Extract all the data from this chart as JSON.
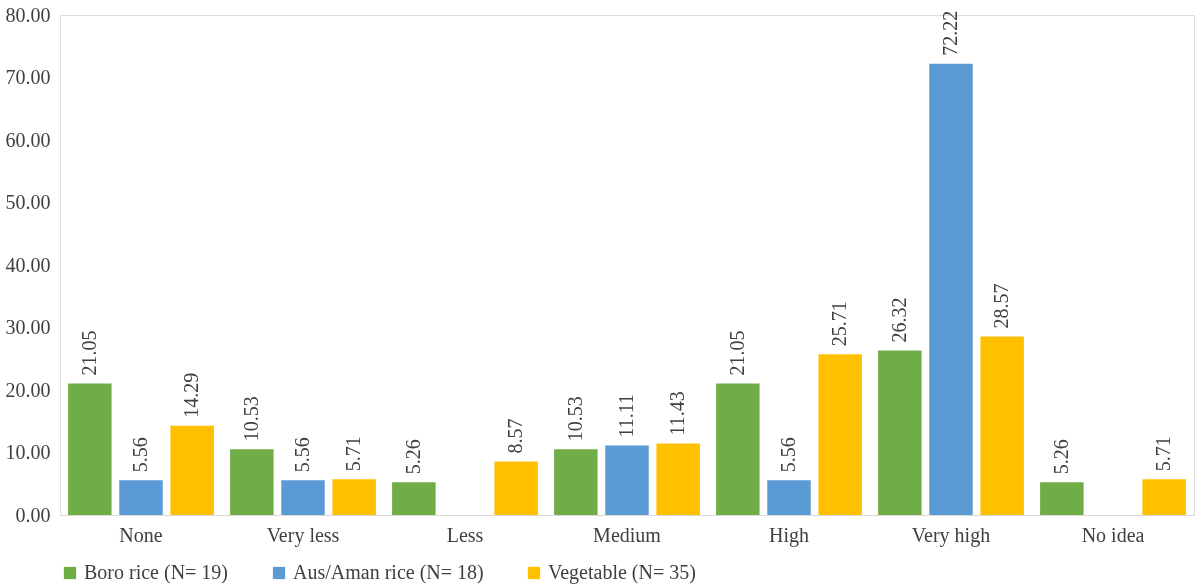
{
  "chart_data": {
    "type": "bar",
    "categories": [
      "None",
      "Very less",
      "Less",
      "Medium",
      "High",
      "Very high",
      "No idea"
    ],
    "series": [
      {
        "name": "Boro rice (N= 19)",
        "color": "#70ad47",
        "values": [
          21.05,
          10.53,
          5.26,
          10.53,
          21.05,
          26.32,
          5.26
        ]
      },
      {
        "name": "Aus/Aman rice (N= 18)",
        "color": "#5b9bd5",
        "values": [
          5.56,
          5.56,
          null,
          11.11,
          5.56,
          72.22,
          null
        ]
      },
      {
        "name": "Vegetable (N= 35)",
        "color": "#ffc000",
        "values": [
          14.29,
          5.71,
          8.57,
          11.43,
          25.71,
          28.57,
          5.71
        ]
      }
    ],
    "ylim": [
      0,
      80
    ],
    "yticks": [
      {
        "value": 0,
        "label": "0.00"
      },
      {
        "value": 10,
        "label": "10.00"
      },
      {
        "value": 20,
        "label": "20.00"
      },
      {
        "value": 30,
        "label": "30.00"
      },
      {
        "value": 40,
        "label": "40.00"
      },
      {
        "value": 50,
        "label": "50.00"
      },
      {
        "value": 60,
        "label": "60.00"
      },
      {
        "value": 70,
        "label": "70.00"
      },
      {
        "value": 80,
        "label": "80.00"
      }
    ],
    "grid": false,
    "legend": "bottom",
    "data_labels": true
  }
}
